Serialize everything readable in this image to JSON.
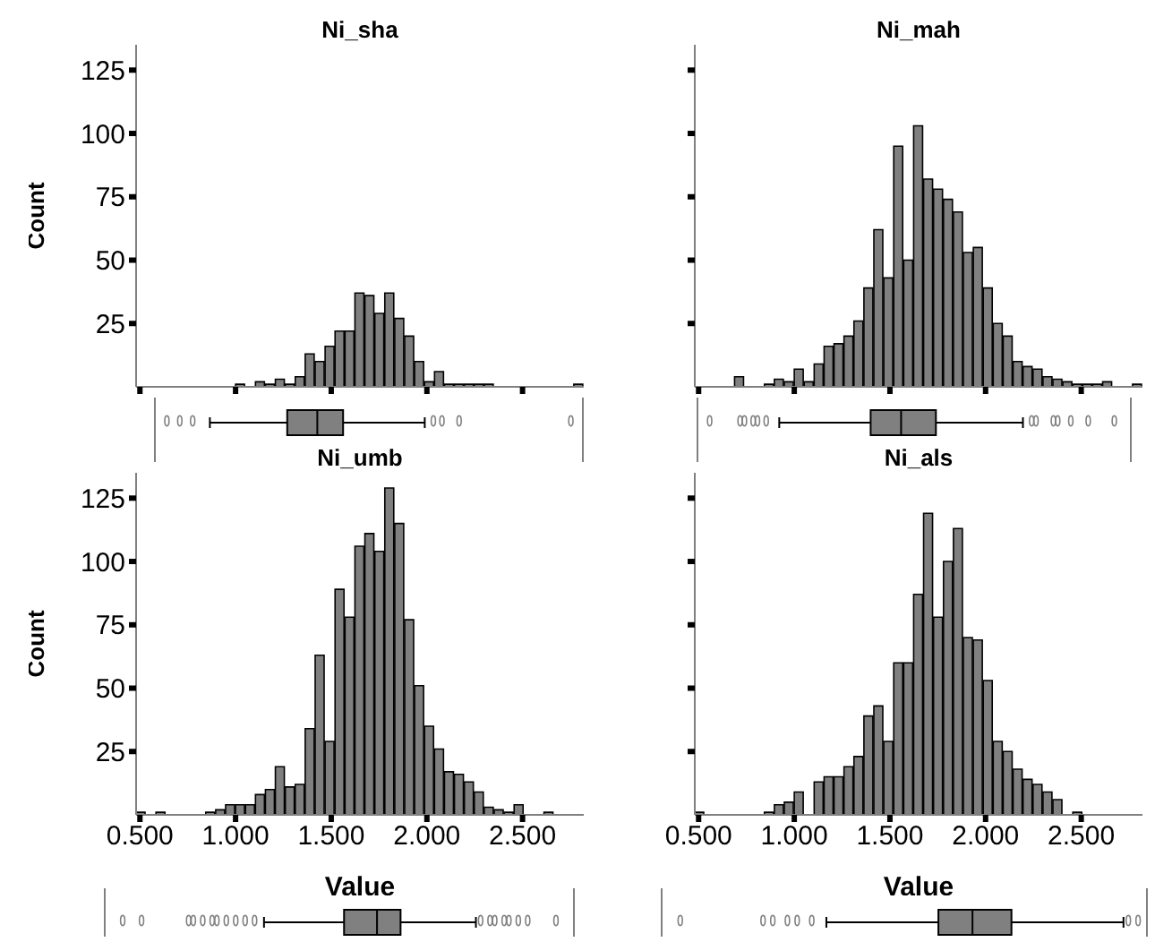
{
  "chart_data": [
    {
      "type": "histogram",
      "title": "Ni_sha",
      "ylabel": "Count",
      "color": "#808080",
      "tick_labels": "y",
      "xlim": [
        0.48,
        2.82
      ],
      "ylim": [
        0,
        135
      ],
      "yticks": [
        25,
        50,
        75,
        100,
        125
      ],
      "xticks": [
        {
          "value": 0.5,
          "label": null
        },
        {
          "value": 1,
          "label": null
        },
        {
          "value": 1.5,
          "label": null
        },
        {
          "value": 2,
          "label": null
        },
        {
          "value": 2.5,
          "label": null
        }
      ],
      "bins": [
        0.48,
        0.532,
        0.584,
        0.636,
        0.688,
        0.74,
        0.792,
        0.844,
        0.896,
        0.948,
        1.0,
        1.052,
        1.104,
        1.156,
        1.208,
        1.26,
        1.312,
        1.364,
        1.416,
        1.468,
        1.52,
        1.572,
        1.624,
        1.676,
        1.728,
        1.78,
        1.832,
        1.884,
        1.936,
        1.988,
        2.04,
        2.092,
        2.144,
        2.196,
        2.248,
        2.3,
        2.352,
        2.404,
        2.456,
        2.508,
        2.56,
        2.612,
        2.664,
        2.716,
        2.768,
        2.82
      ],
      "values": [
        0,
        0,
        0,
        0,
        0,
        0,
        0,
        0,
        0,
        0,
        1,
        0,
        2,
        1,
        3,
        1,
        4,
        13,
        10,
        16,
        22,
        22,
        37,
        36,
        29,
        37,
        27,
        20,
        10,
        2,
        6,
        1,
        1,
        1,
        1,
        1,
        0,
        0,
        0,
        0,
        0,
        0,
        0,
        0,
        1
      ]
    },
    {
      "type": "histogram",
      "title": "Ni_mah",
      "color": "#808080",
      "tick_labels": false,
      "xlim": [
        0.48,
        2.82
      ],
      "ylim": [
        0,
        135
      ],
      "yticks": [
        {
          "value": 25,
          "label": null
        },
        {
          "value": 50,
          "label": null
        },
        {
          "value": 75,
          "label": null
        },
        {
          "value": 100,
          "label": null
        },
        {
          "value": 125,
          "label": null
        }
      ],
      "xticks": [
        {
          "value": 0.5,
          "label": null
        },
        {
          "value": 1,
          "label": null
        },
        {
          "value": 1.5,
          "label": null
        },
        {
          "value": 2,
          "label": null
        },
        {
          "value": 2.5,
          "label": null
        }
      ],
      "bins": [
        0.48,
        0.532,
        0.584,
        0.636,
        0.688,
        0.74,
        0.792,
        0.844,
        0.896,
        0.948,
        1.0,
        1.052,
        1.104,
        1.156,
        1.208,
        1.26,
        1.312,
        1.364,
        1.416,
        1.468,
        1.52,
        1.572,
        1.624,
        1.676,
        1.728,
        1.78,
        1.832,
        1.884,
        1.936,
        1.988,
        2.04,
        2.092,
        2.144,
        2.196,
        2.248,
        2.3,
        2.352,
        2.404,
        2.456,
        2.508,
        2.56,
        2.612,
        2.664,
        2.716,
        2.768,
        2.82
      ],
      "values": [
        0,
        0,
        0,
        0,
        4,
        0,
        0,
        1,
        3,
        2,
        7,
        2,
        9,
        16,
        17,
        20,
        26,
        39,
        62,
        43,
        95,
        50,
        103,
        82,
        78,
        74,
        69,
        53,
        55,
        39,
        25,
        20,
        10,
        8,
        7,
        4,
        3,
        2,
        1,
        1,
        1,
        2,
        0,
        0,
        1
      ]
    },
    {
      "type": "histogram",
      "title": "Ni_umb",
      "xlabel": "Value",
      "ylabel": "Count",
      "color": "#808080",
      "xlim": [
        0.48,
        2.82
      ],
      "ylim": [
        0,
        135
      ],
      "yticks": [
        25,
        50,
        75,
        100,
        125
      ],
      "xticks": [
        {
          "value": 0.5,
          "label": "0.500"
        },
        {
          "value": 1,
          "label": "1.000"
        },
        {
          "value": 1.5,
          "label": "1.500"
        },
        {
          "value": 2,
          "label": "2.000"
        },
        {
          "value": 2.5,
          "label": "2.500"
        }
      ],
      "bins": [
        0.48,
        0.532,
        0.584,
        0.636,
        0.688,
        0.74,
        0.792,
        0.844,
        0.896,
        0.948,
        1.0,
        1.052,
        1.104,
        1.156,
        1.208,
        1.26,
        1.312,
        1.364,
        1.416,
        1.468,
        1.52,
        1.572,
        1.624,
        1.676,
        1.728,
        1.78,
        1.832,
        1.884,
        1.936,
        1.988,
        2.04,
        2.092,
        2.144,
        2.196,
        2.248,
        2.3,
        2.352,
        2.404,
        2.456,
        2.508,
        2.56,
        2.612,
        2.664,
        2.716,
        2.768,
        2.82
      ],
      "values": [
        1,
        0,
        1,
        0,
        0,
        0,
        0,
        1,
        2,
        4,
        4,
        4,
        8,
        10,
        19,
        11,
        12,
        34,
        63,
        29,
        89,
        78,
        106,
        111,
        104,
        129,
        115,
        77,
        51,
        35,
        26,
        17,
        16,
        13,
        9,
        3,
        2,
        1,
        4,
        0,
        0,
        1,
        0,
        0,
        0
      ]
    },
    {
      "type": "histogram",
      "title": "Ni_als",
      "xlabel": "Value",
      "color": "#808080",
      "tick_labels": "x",
      "xlim": [
        0.48,
        2.82
      ],
      "ylim": [
        0,
        135
      ],
      "yticks": [
        {
          "value": 25,
          "label": null
        },
        {
          "value": 50,
          "label": null
        },
        {
          "value": 75,
          "label": null
        },
        {
          "value": 100,
          "label": null
        },
        {
          "value": 125,
          "label": null
        }
      ],
      "xticks": [
        {
          "value": 0.5,
          "label": "0.500"
        },
        {
          "value": 1,
          "label": "1.000"
        },
        {
          "value": 1.5,
          "label": "1.500"
        },
        {
          "value": 2,
          "label": "2.000"
        },
        {
          "value": 2.5,
          "label": "2.500"
        }
      ],
      "bins": [
        0.48,
        0.532,
        0.584,
        0.636,
        0.688,
        0.74,
        0.792,
        0.844,
        0.896,
        0.948,
        1.0,
        1.052,
        1.104,
        1.156,
        1.208,
        1.26,
        1.312,
        1.364,
        1.416,
        1.468,
        1.52,
        1.572,
        1.624,
        1.676,
        1.728,
        1.78,
        1.832,
        1.884,
        1.936,
        1.988,
        2.04,
        2.092,
        2.144,
        2.196,
        2.248,
        2.3,
        2.352,
        2.404,
        2.456,
        2.508,
        2.56,
        2.612,
        2.664,
        2.716,
        2.768,
        2.82
      ],
      "values": [
        1,
        0,
        0,
        0,
        0,
        0,
        0,
        1,
        4,
        5,
        9,
        0,
        13,
        15,
        15,
        19,
        23,
        39,
        43,
        29,
        60,
        60,
        87,
        119,
        78,
        100,
        113,
        70,
        69,
        53,
        29,
        25,
        18,
        14,
        12,
        9,
        6,
        0,
        1,
        0,
        0,
        0,
        0,
        0,
        0
      ]
    }
  ]
}
